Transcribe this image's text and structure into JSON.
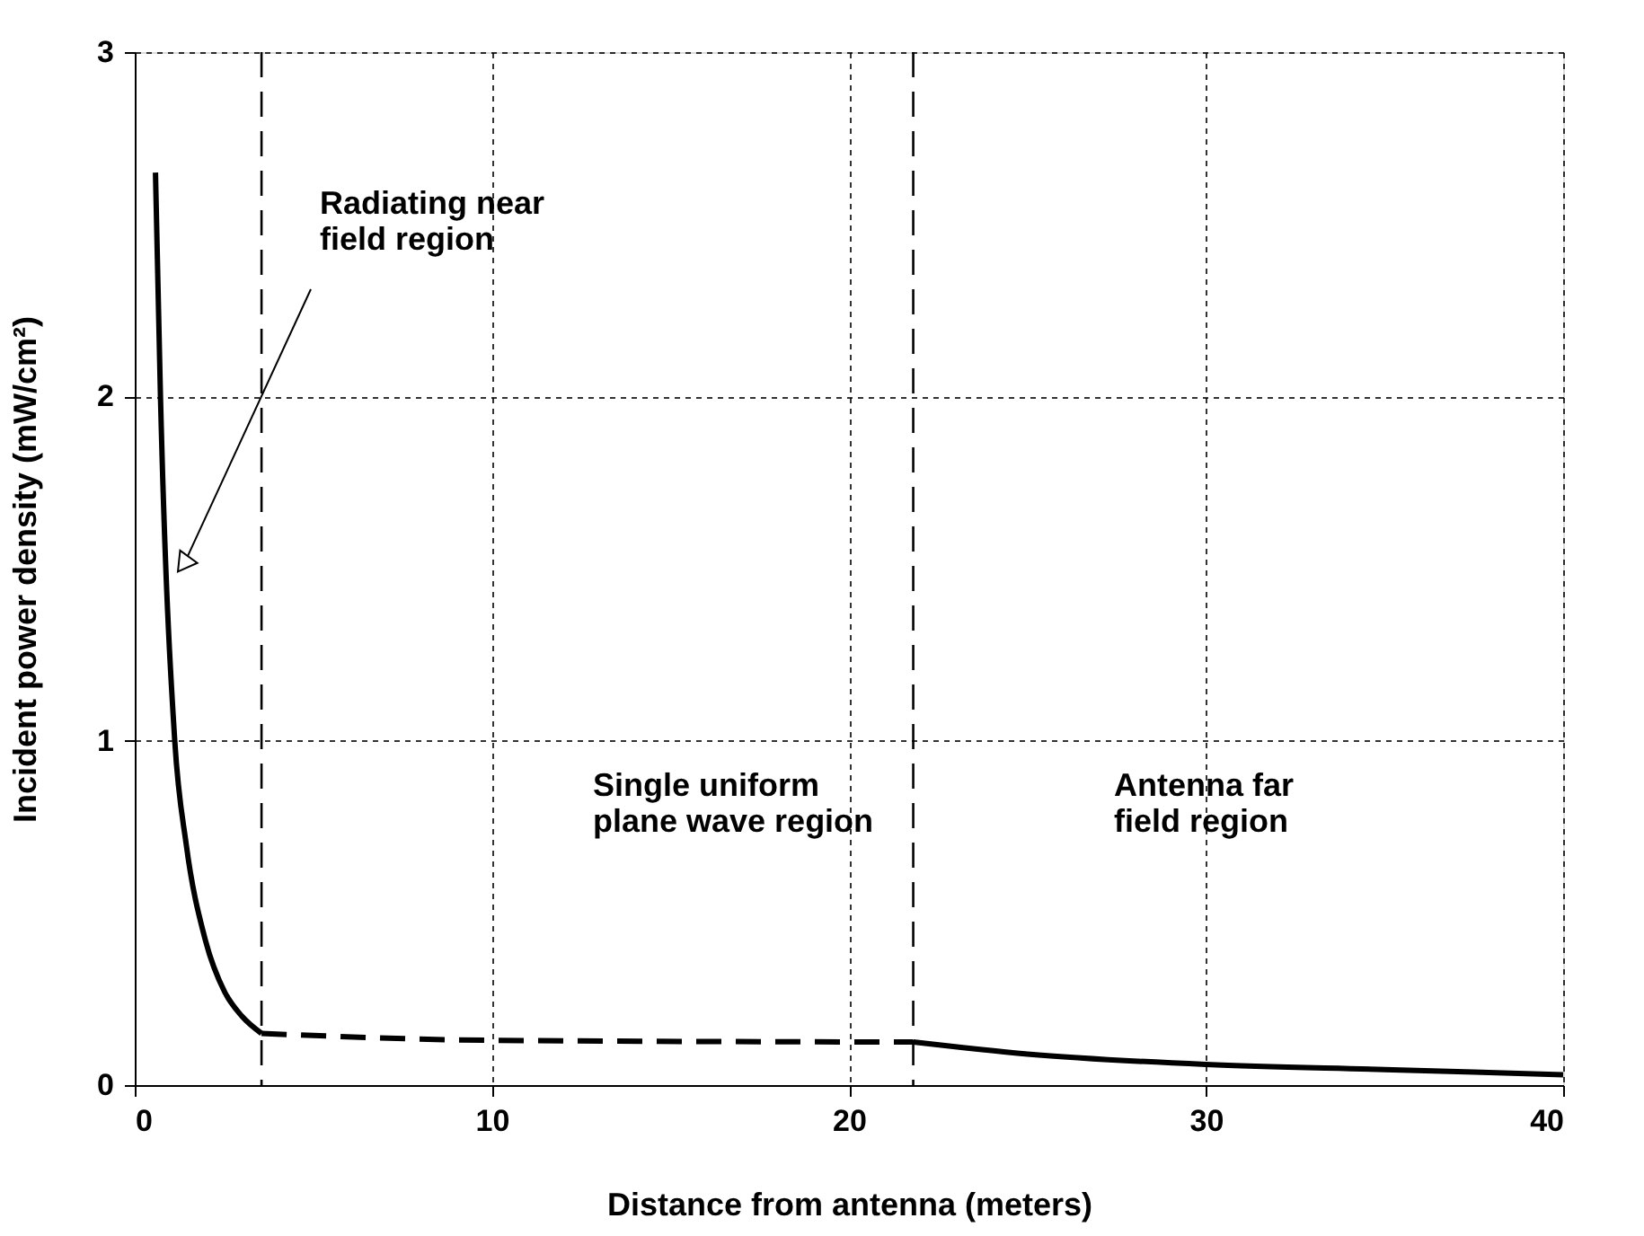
{
  "chart_data": {
    "type": "line",
    "xlabel": "Distance from antenna (meters)",
    "ylabel": "Incident power density (mW/cm²)",
    "xlim": [
      0,
      40
    ],
    "xticks": [
      0,
      10,
      20,
      30,
      40
    ],
    "ylim": [
      0,
      3
    ],
    "yticks": [
      0,
      1,
      2,
      3
    ],
    "grid": true,
    "marker": "none",
    "series": [
      {
        "color": "#000000",
        "line_style": "solid",
        "x": [
          0.58,
          0.72,
          1.12,
          1.44,
          1.98,
          2.52,
          3.0,
          3.55
        ],
        "values": [
          2.65,
          2.0,
          1.0,
          0.7,
          0.42,
          0.27,
          0.2,
          0.15
        ]
      },
      {
        "color": "#000000",
        "line_style": "dashed",
        "x": [
          3.55,
          10,
          21.8
        ],
        "values": [
          0.15,
          0.13,
          0.125
        ]
      },
      {
        "color": "#000000",
        "line_style": "solid",
        "x": [
          21.8,
          25,
          30,
          35,
          40
        ],
        "values": [
          0.125,
          0.09,
          0.06,
          0.045,
          0.03
        ]
      }
    ],
    "ref_lines": [
      {
        "axis": "x",
        "value": 3.55,
        "color": "#000000",
        "line_style": "dashed"
      },
      {
        "axis": "x",
        "value": 21.8,
        "color": "#000000",
        "line_style": "dashed"
      }
    ],
    "annotations": [
      {
        "text": "Radiating near\nfield region",
        "x": 1.41,
        "y": 1.52
      },
      "Single uniform\nplane wave region",
      "Antenna far\nfield region"
    ]
  }
}
